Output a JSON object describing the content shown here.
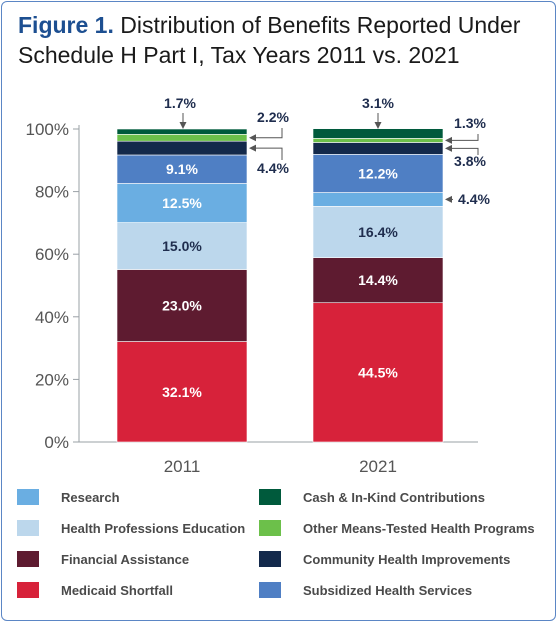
{
  "title": {
    "prefix": "Figure 1.",
    "text": " Distribution of Benefits Reported Under Schedule H Part I, Tax Years 2011 vs. 2021"
  },
  "chart_data": {
    "type": "bar",
    "stacked": true,
    "categories": [
      "2011",
      "2021"
    ],
    "ylim": [
      0,
      100
    ],
    "yticks": [
      "0%",
      "20%",
      "40%",
      "60%",
      "80%",
      "100%"
    ],
    "series": [
      {
        "name": "Medicaid Shortfall",
        "color": "#d7223a",
        "values": [
          32.1,
          44.5
        ],
        "labels": [
          "32.1%",
          "44.5%"
        ]
      },
      {
        "name": "Financial Assistance",
        "color": "#5e1b30",
        "values": [
          23.0,
          14.4
        ],
        "labels": [
          "23.0%",
          "14.4%"
        ]
      },
      {
        "name": "Health Professions Education",
        "color": "#bcd7ec",
        "values": [
          15.0,
          16.4
        ],
        "labels": [
          "15.0%",
          "16.4%"
        ]
      },
      {
        "name": "Research",
        "color": "#6aaee2",
        "values": [
          12.5,
          4.4
        ],
        "labels": [
          "12.5%",
          "4.4%"
        ]
      },
      {
        "name": "Subsidized Health Services",
        "color": "#4f7fc4",
        "values": [
          9.1,
          12.2
        ],
        "labels": [
          "9.1%",
          "12.2%"
        ]
      },
      {
        "name": "Community Health Improvements",
        "color": "#13294b",
        "values": [
          4.4,
          3.8
        ],
        "labels": [
          "4.4%",
          "3.8%"
        ]
      },
      {
        "name": "Other Means-Tested Health Programs",
        "color": "#6cc04a",
        "values": [
          2.2,
          1.3
        ],
        "labels": [
          "2.2%",
          "1.3%"
        ]
      },
      {
        "name": "Cash & In-Kind Contributions",
        "color": "#005a3c",
        "values": [
          1.7,
          3.1
        ],
        "labels": [
          "1.7%",
          "3.1%"
        ]
      }
    ],
    "legend": {
      "placement": "bottom",
      "left_column": [
        "Research",
        "Health Professions Education",
        "Financial Assistance",
        "Medicaid Shortfall"
      ],
      "right_column": [
        "Cash & In-Kind Contributions",
        "Other Means-Tested Health Programs",
        "Community Health Improvements",
        "Subsidized Health Services"
      ]
    }
  }
}
